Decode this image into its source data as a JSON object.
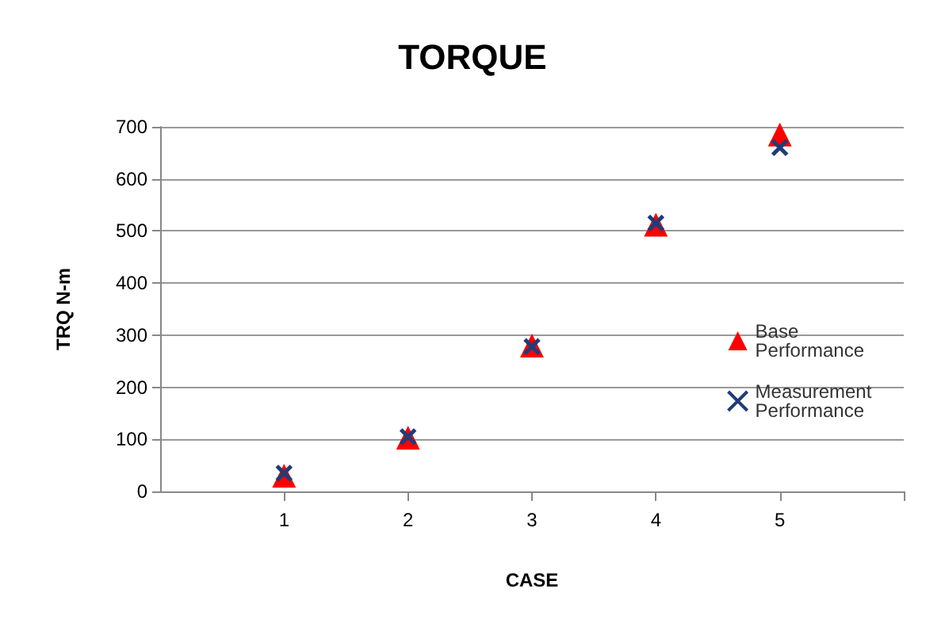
{
  "chart_data": {
    "type": "scatter",
    "title": "TORQUE",
    "xlabel": "CASE",
    "ylabel": "TRQ N-m",
    "xlim": [
      0,
      6
    ],
    "xticks": [
      {
        "value": 0,
        "label": null
      },
      1,
      2,
      3,
      4,
      5,
      {
        "value": 6,
        "label": null
      }
    ],
    "ylim": [
      0,
      700
    ],
    "yticks": [
      0,
      100,
      200,
      300,
      400,
      500,
      600,
      700
    ],
    "x": [
      1,
      2,
      3,
      4,
      5
    ],
    "series": [
      {
        "name": "Base Performance",
        "color": "#ff0000",
        "marker": "triangle",
        "values": [
          30,
          103,
          280,
          512,
          685
        ]
      },
      {
        "name": "Measurement Performance",
        "color": "#1f3c7a",
        "marker": "cross",
        "values": [
          35,
          105,
          278,
          515,
          660
        ]
      }
    ],
    "grid": "y",
    "legend": "right"
  }
}
